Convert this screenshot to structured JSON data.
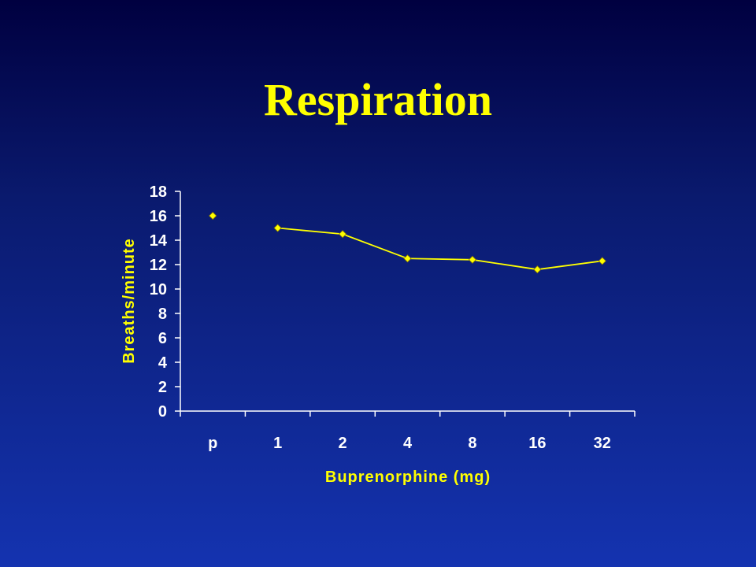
{
  "slide": {
    "title": "Respiration"
  },
  "colors": {
    "background_top": "#000040",
    "background_bottom": "#1433b0",
    "title": "#FFFF00",
    "axis": "#FFFFFF",
    "series": "#FFFF00"
  },
  "chart_data": {
    "type": "line",
    "title": "",
    "xlabel": "Buprenorphine (mg)",
    "ylabel": "Breaths/minute",
    "categories": [
      "p",
      "1",
      "2",
      "4",
      "8",
      "16",
      "32"
    ],
    "ylim": [
      0,
      18
    ],
    "yticks": [
      0,
      2,
      4,
      6,
      8,
      10,
      12,
      14,
      16,
      18
    ],
    "grid": false,
    "legend": "none",
    "series": [
      {
        "values": [
          16.0,
          15.0,
          14.5,
          12.5,
          12.4,
          11.6,
          12.3
        ],
        "connected": [
          false,
          true,
          true,
          true,
          true,
          true,
          true
        ],
        "marker": "diamond"
      }
    ]
  }
}
